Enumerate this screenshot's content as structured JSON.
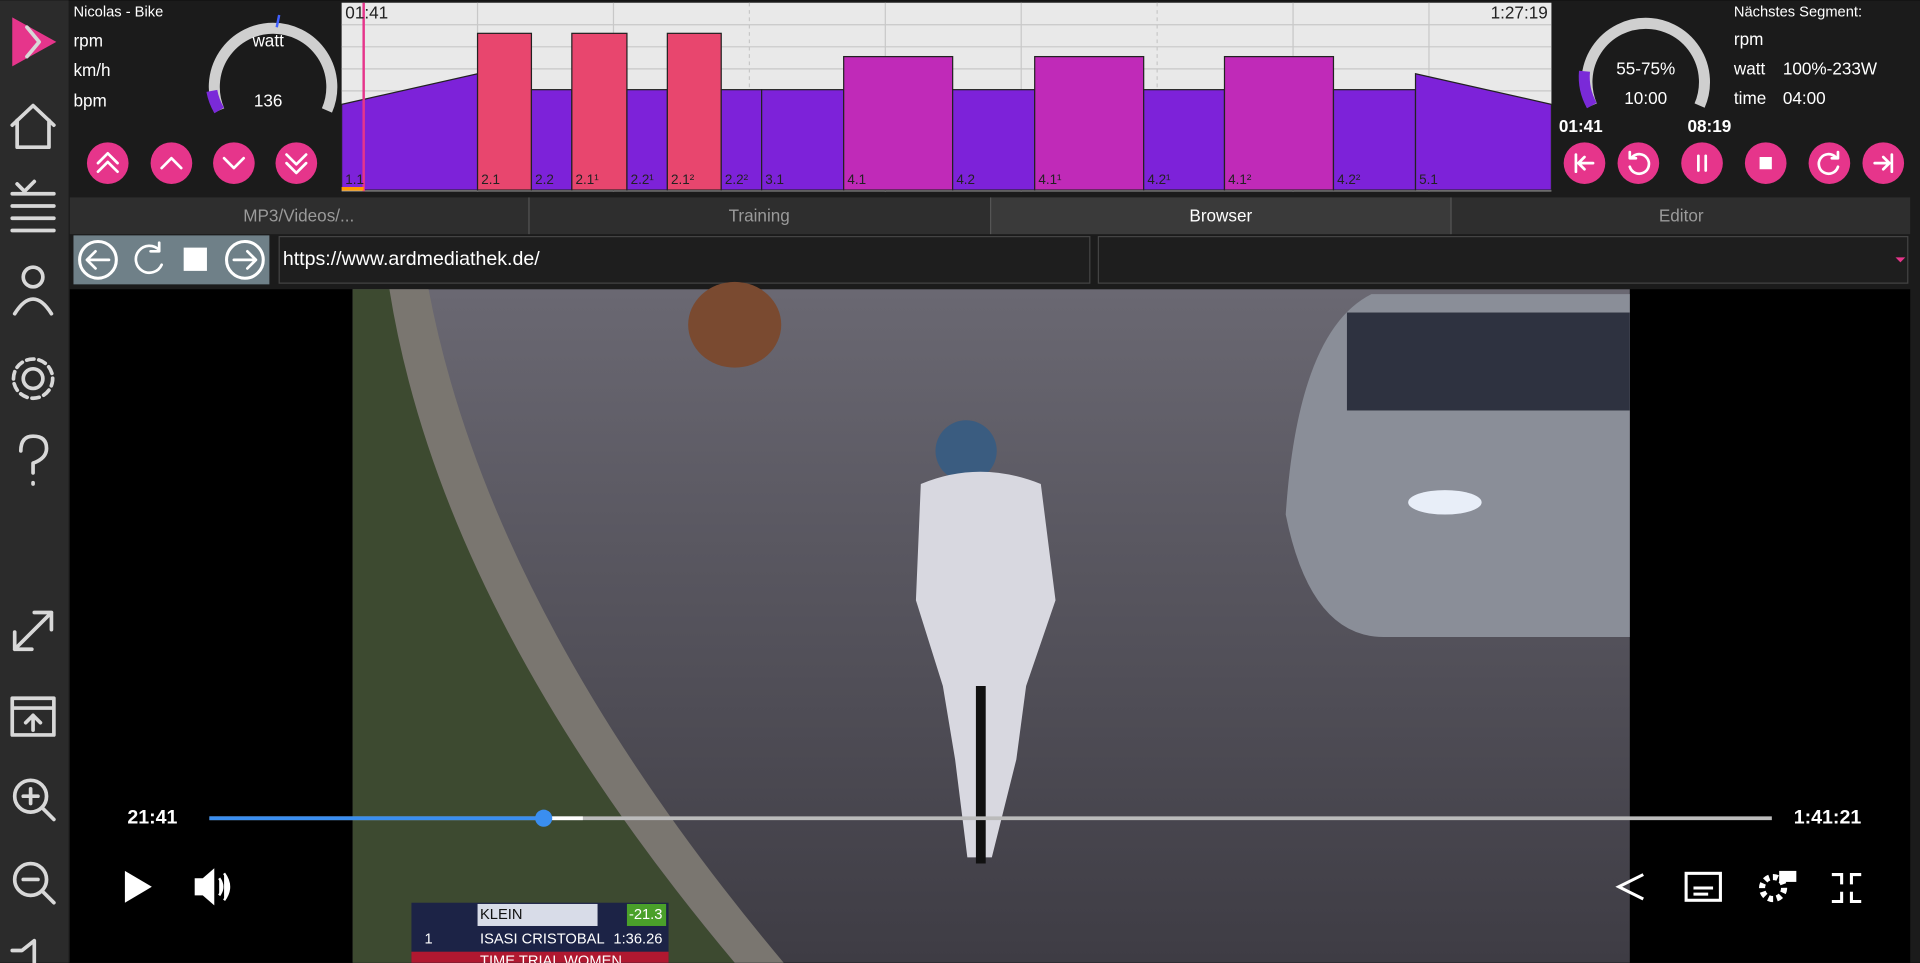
{
  "rider": {
    "name": "Nicolas - Bike",
    "metrics": [
      "rpm",
      "km/h",
      "bpm"
    ],
    "gauge_unit": "watt",
    "gauge_value": 136
  },
  "profile": {
    "elapsed": "01:41",
    "total": "1:27:19",
    "segments": [
      "1.1",
      "2.1",
      "2.2",
      "2.1¹",
      "2.2¹",
      "2.1²",
      "2.2²",
      "3.1",
      "4.1",
      "4.2",
      "4.1¹",
      "4.2¹",
      "4.1²",
      "4.2²",
      "5.1"
    ]
  },
  "segment_gauge": {
    "range": "55-75%",
    "duration": "10:00",
    "elapsed": "01:41",
    "remaining": "08:19"
  },
  "next_segment": {
    "title": "Nächstes Segment:",
    "rows": [
      {
        "label": "rpm"
      },
      {
        "label": "watt",
        "value": "100%-233W"
      },
      {
        "label": "time",
        "value": "04:00"
      }
    ]
  },
  "tabs": [
    "MP3/Videos/...",
    "Training",
    "Browser",
    "Editor"
  ],
  "browser": {
    "url": "https://www.ardmediathek.de/"
  },
  "video": {
    "current": "21:41",
    "duration": "1:41:21",
    "scoreboard": {
      "leader": "KLEIN",
      "leader_gap": "-21.3",
      "rank": "1",
      "rider": "ISASI CRISTOBAL",
      "rider_time": "1:36.26",
      "event": "TIME TRIAL WOMEN"
    }
  }
}
